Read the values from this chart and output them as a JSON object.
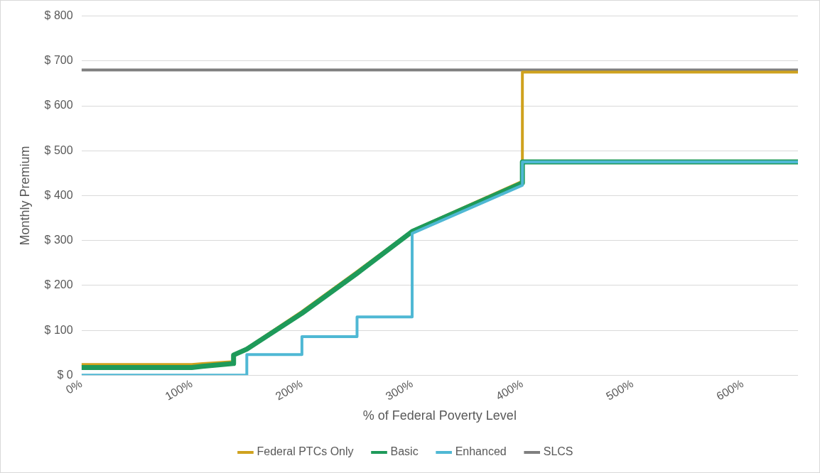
{
  "chart_data": {
    "type": "line",
    "xlabel": "% of Federal Poverty Level",
    "ylabel": "Monthly Premium",
    "xlim": [
      0,
      650
    ],
    "xticks": [
      {
        "value": 0,
        "label": "0%"
      },
      {
        "value": 100,
        "label": "100%"
      },
      {
        "value": 200,
        "label": "200%"
      },
      {
        "value": 300,
        "label": "300%"
      },
      {
        "value": 400,
        "label": "400%"
      },
      {
        "value": 500,
        "label": "500%"
      },
      {
        "value": 600,
        "label": "600%"
      }
    ],
    "ylim": [
      0,
      800
    ],
    "yticks": [
      {
        "value": 0,
        "label": "$ 0"
      },
      {
        "value": 100,
        "label": "$ 100"
      },
      {
        "value": 200,
        "label": "$ 200"
      },
      {
        "value": 300,
        "label": "$ 300"
      },
      {
        "value": 400,
        "label": "$ 400"
      },
      {
        "value": 500,
        "label": "$ 500"
      },
      {
        "value": 600,
        "label": "$ 600"
      },
      {
        "value": 700,
        "label": "$ 700"
      },
      {
        "value": 800,
        "label": "$ 800"
      }
    ],
    "grid": "y",
    "legend": "bottom",
    "marker": "none",
    "line_style": "solid",
    "series": [
      {
        "name": "Federal PTCs Only",
        "color": "#cfa21e",
        "x": [
          0,
          100,
          110,
          138,
          138,
          150,
          200,
          250,
          300,
          400,
          400,
          650
        ],
        "values": [
          24,
          24,
          26,
          30,
          45,
          60,
          142,
          231,
          322,
          432,
          675,
          675
        ]
      },
      {
        "name": "Basic",
        "color": "#1e9a5a",
        "x": [
          0,
          100,
          110,
          138,
          138,
          150,
          200,
          250,
          300,
          400,
          400,
          650
        ],
        "values": [
          17,
          17,
          20,
          26,
          45,
          58,
          138,
          227,
          320,
          428,
          475,
          475
        ]
      },
      {
        "name": "Enhanced",
        "color": "#4fb8d4",
        "x": [
          0,
          150,
          150,
          200,
          200,
          250,
          250,
          300,
          300,
          400,
          400,
          650
        ],
        "values": [
          0,
          0,
          46,
          46,
          86,
          86,
          130,
          130,
          316,
          423,
          475,
          475
        ]
      },
      {
        "name": "SLCS",
        "color": "#7f7f7f",
        "x": [
          0,
          650
        ],
        "values": [
          680,
          680
        ]
      }
    ]
  }
}
